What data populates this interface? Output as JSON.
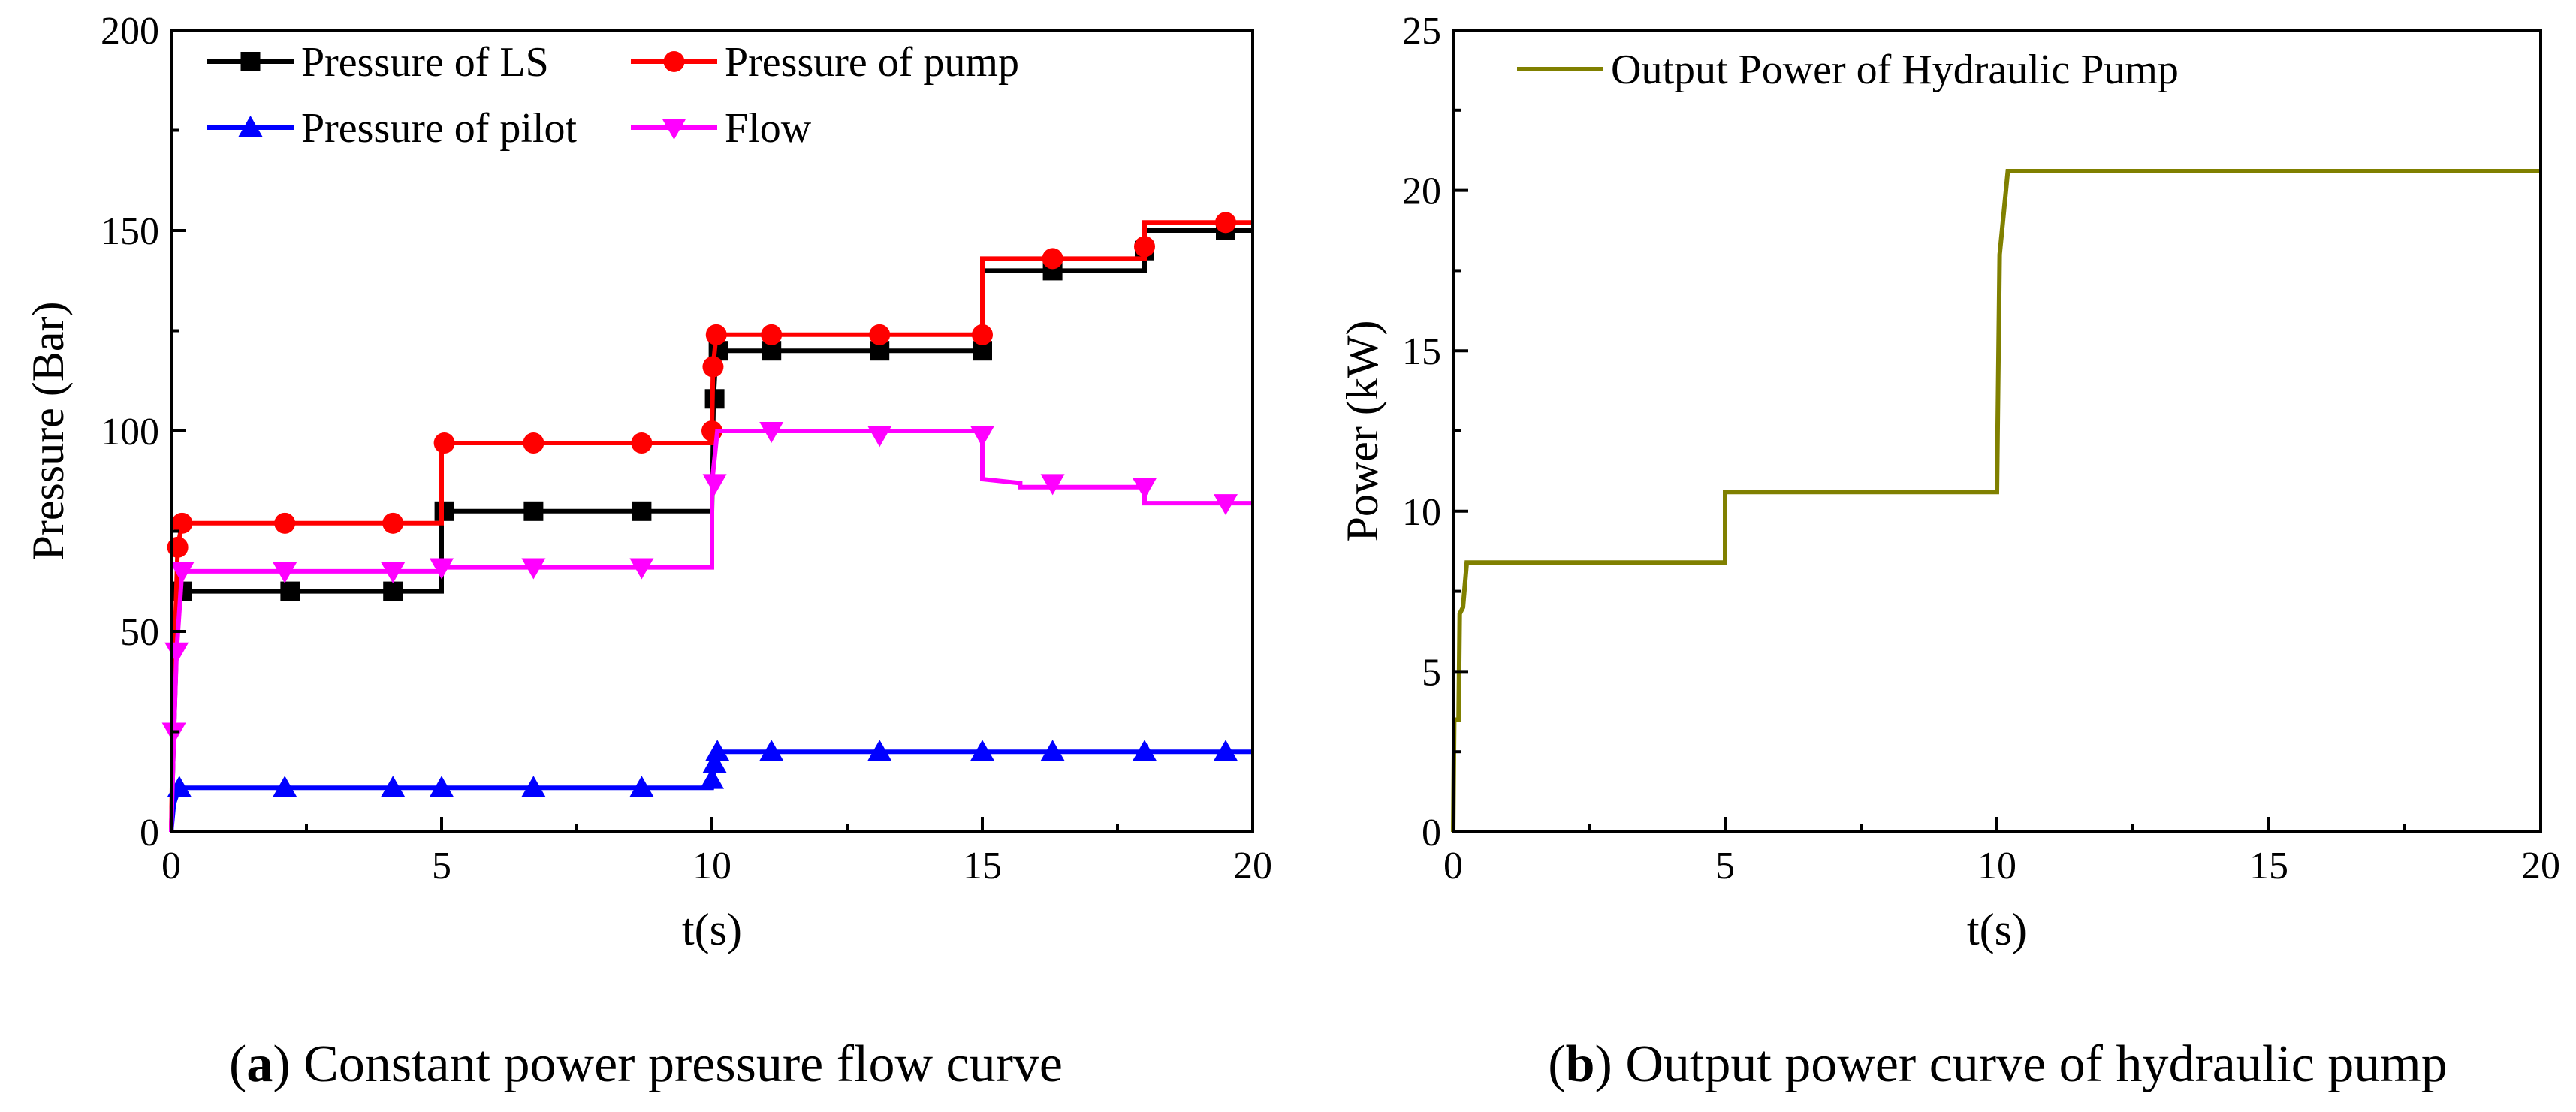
{
  "chart_data": [
    {
      "type": "line",
      "caption_letter": "a",
      "caption_text": "Constant power pressure flow curve",
      "xlabel": "t(s)",
      "ylabel": "Pressure (Bar)",
      "xlim": [
        0,
        20
      ],
      "ylim": [
        0,
        200
      ],
      "xticks": [
        0,
        5,
        10,
        15,
        20
      ],
      "yticks": [
        0,
        50,
        100,
        150,
        200
      ],
      "legend_position": "top-left",
      "series": [
        {
          "name": "Pressure of LS",
          "color": "#000000",
          "marker": "square",
          "line": [
            [
              0,
              0
            ],
            [
              0.05,
              25
            ],
            [
              0.12,
              55
            ],
            [
              0.2,
              60
            ],
            [
              5,
              60
            ],
            [
              5,
              80
            ],
            [
              10,
              80
            ],
            [
              10.03,
              108
            ],
            [
              10.08,
              120
            ],
            [
              15,
              120
            ],
            [
              15,
              140
            ],
            [
              18,
              140
            ],
            [
              18,
              150
            ],
            [
              20,
              150
            ]
          ],
          "markers": [
            [
              0.2,
              60
            ],
            [
              2.2,
              60
            ],
            [
              4.1,
              60
            ],
            [
              5.05,
              80
            ],
            [
              6.7,
              80
            ],
            [
              8.7,
              80
            ],
            [
              10.05,
              108
            ],
            [
              10.12,
              120
            ],
            [
              11.1,
              120
            ],
            [
              13.1,
              120
            ],
            [
              15,
              120
            ],
            [
              16.3,
              140
            ],
            [
              18,
              145
            ],
            [
              19.5,
              150
            ]
          ]
        },
        {
          "name": "Pressure of pump",
          "color": "#ff0000",
          "marker": "circle",
          "line": [
            [
              0,
              0
            ],
            [
              0.05,
              40
            ],
            [
              0.12,
              71
            ],
            [
              0.2,
              77
            ],
            [
              5,
              77
            ],
            [
              5,
              97
            ],
            [
              10,
              97
            ],
            [
              10,
              100
            ],
            [
              10.02,
              116
            ],
            [
              10.08,
              124
            ],
            [
              15,
              124
            ],
            [
              15,
              143
            ],
            [
              18,
              143
            ],
            [
              18,
              152
            ],
            [
              20,
              152
            ]
          ],
          "markers": [
            [
              0.12,
              71
            ],
            [
              0.2,
              77
            ],
            [
              2.1,
              77
            ],
            [
              4.1,
              77
            ],
            [
              5.05,
              97
            ],
            [
              6.7,
              97
            ],
            [
              8.7,
              97
            ],
            [
              10,
              100
            ],
            [
              10.02,
              116
            ],
            [
              10.08,
              124
            ],
            [
              11.1,
              124
            ],
            [
              13.1,
              124
            ],
            [
              15,
              124
            ],
            [
              16.3,
              143
            ],
            [
              18,
              146
            ],
            [
              19.5,
              152
            ]
          ]
        },
        {
          "name": "Pressure of pilot",
          "color": "#0000ff",
          "marker": "triangle-up",
          "line": [
            [
              0,
              0
            ],
            [
              0.05,
              7
            ],
            [
              0.15,
              11
            ],
            [
              10,
              11
            ],
            [
              10.02,
              13
            ],
            [
              10.05,
              17
            ],
            [
              10.1,
              20
            ],
            [
              20,
              20
            ]
          ],
          "markers": [
            [
              0.15,
              11
            ],
            [
              2.1,
              11
            ],
            [
              4.1,
              11
            ],
            [
              5,
              11
            ],
            [
              6.7,
              11
            ],
            [
              8.7,
              11
            ],
            [
              10,
              13
            ],
            [
              10.05,
              17
            ],
            [
              10.1,
              20
            ],
            [
              11.1,
              20
            ],
            [
              13.1,
              20
            ],
            [
              15,
              20
            ],
            [
              16.3,
              20
            ],
            [
              18,
              20
            ],
            [
              19.5,
              20
            ]
          ]
        },
        {
          "name": "Flow",
          "color": "#ff00ff",
          "marker": "triangle-down",
          "line": [
            [
              0,
              0
            ],
            [
              0.05,
              25
            ],
            [
              0.1,
              45
            ],
            [
              0.2,
              65
            ],
            [
              5,
              65
            ],
            [
              5,
              66
            ],
            [
              10,
              66
            ],
            [
              10,
              87
            ],
            [
              10.1,
              100
            ],
            [
              15,
              100
            ],
            [
              15,
              88
            ],
            [
              15.7,
              87
            ],
            [
              15.7,
              86
            ],
            [
              18,
              86
            ],
            [
              18,
              82
            ],
            [
              20,
              82
            ]
          ],
          "markers": [
            [
              0.05,
              25
            ],
            [
              0.1,
              45
            ],
            [
              0.2,
              65
            ],
            [
              2.1,
              65
            ],
            [
              4.1,
              65
            ],
            [
              5,
              66
            ],
            [
              6.7,
              66
            ],
            [
              8.7,
              66
            ],
            [
              10.05,
              87
            ],
            [
              11.1,
              100
            ],
            [
              13.1,
              99
            ],
            [
              15,
              99
            ],
            [
              16.3,
              87
            ],
            [
              18,
              86
            ],
            [
              19.5,
              82
            ]
          ]
        }
      ]
    },
    {
      "type": "line",
      "caption_letter": "b",
      "caption_text": "Output power curve of hydraulic pump",
      "xlabel": "t(s)",
      "ylabel": "Power (kW)",
      "xlim": [
        0,
        20
      ],
      "ylim": [
        0,
        25
      ],
      "xticks": [
        0,
        5,
        10,
        15,
        20
      ],
      "yticks": [
        0,
        5,
        10,
        15,
        20,
        25
      ],
      "legend_position": "top-left",
      "series": [
        {
          "name": "Output Power of Hydraulic Pump",
          "color": "#808000",
          "marker": "none",
          "line": [
            [
              0,
              0
            ],
            [
              0.02,
              3.5
            ],
            [
              0.1,
              3.5
            ],
            [
              0.12,
              6.8
            ],
            [
              0.18,
              7.0
            ],
            [
              0.25,
              8.4
            ],
            [
              5,
              8.4
            ],
            [
              5,
              10.6
            ],
            [
              10,
              10.6
            ],
            [
              10.05,
              18
            ],
            [
              10.2,
              20.6
            ],
            [
              20,
              20.6
            ]
          ],
          "markers": []
        }
      ]
    }
  ]
}
